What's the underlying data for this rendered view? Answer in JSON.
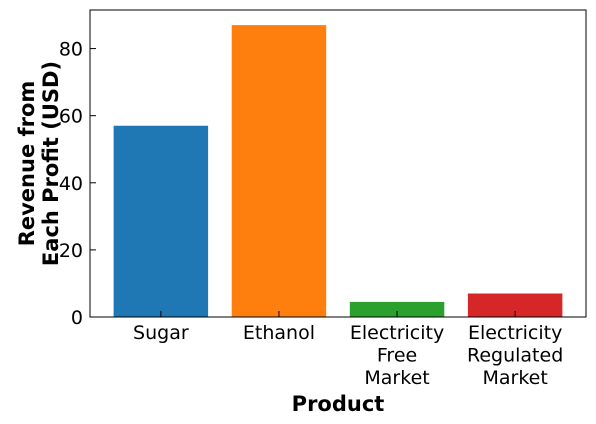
{
  "chart_data": {
    "type": "bar",
    "title": "",
    "xlabel": "Product",
    "ylabel_lines": [
      "Revenue from",
      "Each Profit (USD)"
    ],
    "categories": [
      [
        "Sugar"
      ],
      [
        "Ethanol"
      ],
      [
        "Electricity",
        "Free",
        "Market"
      ],
      [
        "Electricity",
        "Regulated",
        "Market"
      ]
    ],
    "values": [
      57,
      87,
      4.5,
      7
    ],
    "colors": [
      "#1f77b4",
      "#ff7f0e",
      "#2ca02c",
      "#d62728"
    ],
    "ylim": [
      0,
      91.5
    ],
    "yticks": [
      0,
      20,
      40,
      60,
      80
    ],
    "grid": false,
    "legend": "none"
  }
}
